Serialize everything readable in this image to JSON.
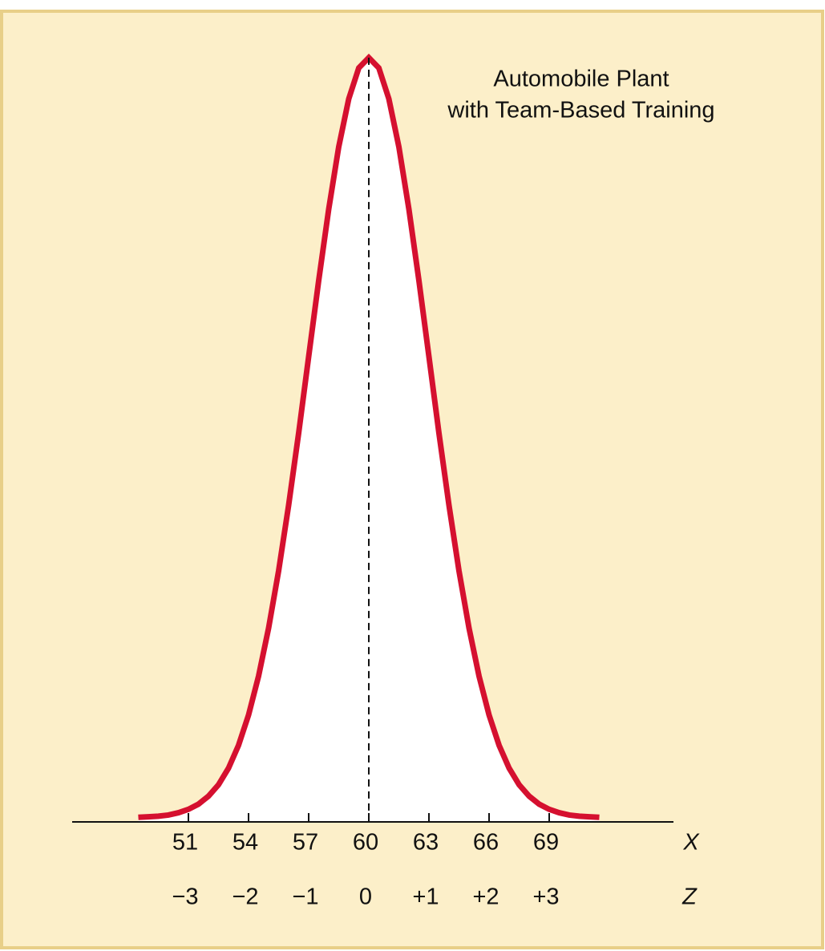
{
  "chart_data": {
    "type": "line",
    "annotation": [
      "Automobile Plant",
      "with Team-Based Training"
    ],
    "x_label": "X",
    "z_label": "Z",
    "color": "#d5102f",
    "x": [
      48.5,
      49,
      49.5,
      50,
      50.5,
      51,
      51.5,
      52,
      52.5,
      53,
      53.5,
      54,
      54.5,
      55,
      55.5,
      56,
      56.5,
      57,
      57.5,
      58,
      58.5,
      59,
      59.5,
      60,
      60.5,
      61,
      61.5,
      62,
      62.5,
      63,
      63.5,
      64,
      64.5,
      65,
      65.5,
      66,
      66.5,
      67,
      67.5,
      68,
      68.5,
      69,
      69.5,
      70,
      70.5,
      71,
      71.5
    ],
    "values": [
      0.0001,
      0.0002,
      0.0003,
      0.0005,
      0.0009,
      0.0015,
      0.0024,
      0.0038,
      0.0058,
      0.0087,
      0.0127,
      0.018,
      0.0248,
      0.0332,
      0.0432,
      0.0547,
      0.0673,
      0.0807,
      0.094,
      0.1065,
      0.1174,
      0.1258,
      0.1312,
      0.133,
      0.1312,
      0.1258,
      0.1174,
      0.1065,
      0.094,
      0.0807,
      0.0673,
      0.0547,
      0.0432,
      0.0332,
      0.0248,
      0.018,
      0.0127,
      0.0087,
      0.0058,
      0.0038,
      0.0024,
      0.0015,
      0.0009,
      0.0005,
      0.0003,
      0.0002,
      0.0001
    ],
    "xlim": [
      45.2,
      75.2
    ],
    "ylim": [
      0,
      0.14
    ],
    "xticks": [
      51,
      54,
      57,
      60,
      63,
      66,
      69
    ],
    "zticks": [
      {
        "value": -3,
        "label": "−3"
      },
      {
        "value": -2,
        "label": "−2"
      },
      {
        "value": -1,
        "label": "−1"
      },
      0,
      {
        "value": 1,
        "label": "+1"
      },
      {
        "value": 2,
        "label": "+2"
      },
      {
        "value": 3,
        "label": "+3"
      }
    ]
  }
}
